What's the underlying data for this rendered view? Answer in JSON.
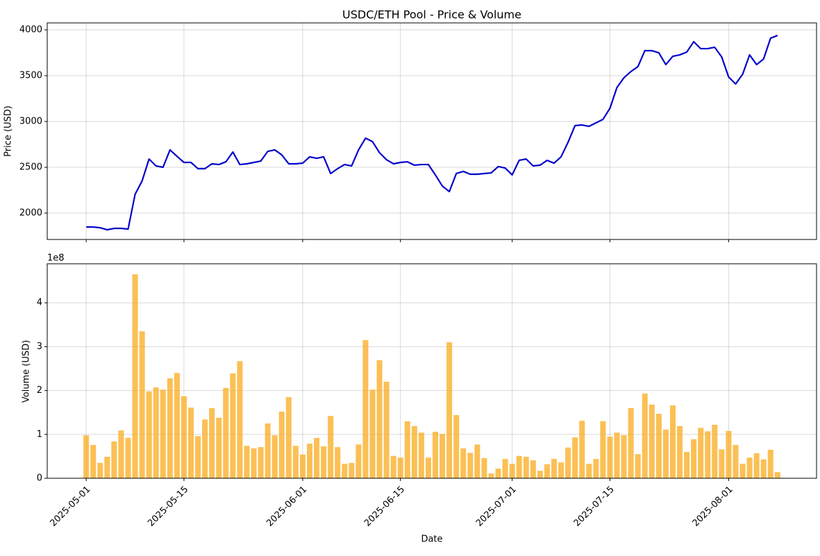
{
  "chart_data": [
    {
      "type": "line",
      "title": "USDC/ETH Pool - Price & Volume",
      "ylabel": "Price (USD)",
      "x": [
        "2025-05-01",
        "2025-05-02",
        "2025-05-03",
        "2025-05-04",
        "2025-05-05",
        "2025-05-06",
        "2025-05-07",
        "2025-05-08",
        "2025-05-09",
        "2025-05-10",
        "2025-05-11",
        "2025-05-12",
        "2025-05-13",
        "2025-05-14",
        "2025-05-15",
        "2025-05-16",
        "2025-05-17",
        "2025-05-18",
        "2025-05-19",
        "2025-05-20",
        "2025-05-21",
        "2025-05-22",
        "2025-05-23",
        "2025-05-24",
        "2025-05-25",
        "2025-05-26",
        "2025-05-27",
        "2025-05-28",
        "2025-05-29",
        "2025-05-30",
        "2025-05-31",
        "2025-06-01",
        "2025-06-02",
        "2025-06-03",
        "2025-06-04",
        "2025-06-05",
        "2025-06-06",
        "2025-06-07",
        "2025-06-08",
        "2025-06-09",
        "2025-06-10",
        "2025-06-11",
        "2025-06-12",
        "2025-06-13",
        "2025-06-14",
        "2025-06-15",
        "2025-06-16",
        "2025-06-17",
        "2025-06-18",
        "2025-06-19",
        "2025-06-20",
        "2025-06-21",
        "2025-06-22",
        "2025-06-23",
        "2025-06-24",
        "2025-06-25",
        "2025-06-26",
        "2025-06-27",
        "2025-06-28",
        "2025-06-29",
        "2025-06-30",
        "2025-07-01",
        "2025-07-02",
        "2025-07-03",
        "2025-07-04",
        "2025-07-05",
        "2025-07-06",
        "2025-07-07",
        "2025-07-08",
        "2025-07-09",
        "2025-07-10",
        "2025-07-11",
        "2025-07-12",
        "2025-07-13",
        "2025-07-14",
        "2025-07-15",
        "2025-07-16",
        "2025-07-17",
        "2025-07-18",
        "2025-07-19",
        "2025-07-20",
        "2025-07-21",
        "2025-07-22",
        "2025-07-23",
        "2025-07-24",
        "2025-07-25",
        "2025-07-26",
        "2025-07-27",
        "2025-07-28",
        "2025-07-29",
        "2025-07-30",
        "2025-07-31",
        "2025-08-01",
        "2025-08-02",
        "2025-08-03",
        "2025-08-04",
        "2025-08-05",
        "2025-08-06",
        "2025-08-07",
        "2025-08-08"
      ],
      "series": [
        {
          "name": "Price",
          "color": "#0000cc",
          "values": [
            1848,
            1848,
            1840,
            1818,
            1833,
            1833,
            1825,
            2205,
            2350,
            2590,
            2515,
            2500,
            2690,
            2620,
            2553,
            2553,
            2485,
            2485,
            2538,
            2530,
            2560,
            2667,
            2530,
            2538,
            2553,
            2568,
            2674,
            2690,
            2636,
            2538,
            2538,
            2545,
            2614,
            2598,
            2614,
            2432,
            2485,
            2530,
            2515,
            2690,
            2818,
            2780,
            2659,
            2583,
            2538,
            2553,
            2560,
            2523,
            2530,
            2530,
            2417,
            2295,
            2235,
            2432,
            2455,
            2424,
            2424,
            2432,
            2439,
            2508,
            2492,
            2417,
            2576,
            2590,
            2515,
            2523,
            2576,
            2545,
            2614,
            2773,
            2955,
            2962,
            2947,
            2985,
            3023,
            3144,
            3371,
            3477,
            3545,
            3598,
            3773,
            3773,
            3750,
            3621,
            3712,
            3727,
            3758,
            3871,
            3795,
            3795,
            3810,
            3705,
            3485,
            3409,
            3515,
            3727,
            3621,
            3682,
            3909,
            3939
          ]
        }
      ],
      "xlim": [
        "2025-04-25T10:00",
        "2025-08-13T14:00"
      ],
      "xticks": [
        "2025-05-01",
        "2025-05-15",
        "2025-06-01",
        "2025-06-15",
        "2025-07-01",
        "2025-07-15",
        "2025-08-01"
      ],
      "ylim": [
        1712,
        4076
      ],
      "yticks": [
        2000,
        2500,
        3000,
        3500,
        4000
      ],
      "grid": true
    },
    {
      "type": "bar",
      "ylabel": "Volume (USD)",
      "xlabel": "Date",
      "y_offset_label": "1e8",
      "x": [
        "2025-05-01",
        "2025-05-02",
        "2025-05-03",
        "2025-05-04",
        "2025-05-05",
        "2025-05-06",
        "2025-05-07",
        "2025-05-08",
        "2025-05-09",
        "2025-05-10",
        "2025-05-11",
        "2025-05-12",
        "2025-05-13",
        "2025-05-14",
        "2025-05-15",
        "2025-05-16",
        "2025-05-17",
        "2025-05-18",
        "2025-05-19",
        "2025-05-20",
        "2025-05-21",
        "2025-05-22",
        "2025-05-23",
        "2025-05-24",
        "2025-05-25",
        "2025-05-26",
        "2025-05-27",
        "2025-05-28",
        "2025-05-29",
        "2025-05-30",
        "2025-05-31",
        "2025-06-01",
        "2025-06-02",
        "2025-06-03",
        "2025-06-04",
        "2025-06-05",
        "2025-06-06",
        "2025-06-07",
        "2025-06-08",
        "2025-06-09",
        "2025-06-10",
        "2025-06-11",
        "2025-06-12",
        "2025-06-13",
        "2025-06-14",
        "2025-06-15",
        "2025-06-16",
        "2025-06-17",
        "2025-06-18",
        "2025-06-19",
        "2025-06-20",
        "2025-06-21",
        "2025-06-22",
        "2025-06-23",
        "2025-06-24",
        "2025-06-25",
        "2025-06-26",
        "2025-06-27",
        "2025-06-28",
        "2025-06-29",
        "2025-06-30",
        "2025-07-01",
        "2025-07-02",
        "2025-07-03",
        "2025-07-04",
        "2025-07-05",
        "2025-07-06",
        "2025-07-07",
        "2025-07-08",
        "2025-07-09",
        "2025-07-10",
        "2025-07-11",
        "2025-07-12",
        "2025-07-13",
        "2025-07-14",
        "2025-07-15",
        "2025-07-16",
        "2025-07-17",
        "2025-07-18",
        "2025-07-19",
        "2025-07-20",
        "2025-07-21",
        "2025-07-22",
        "2025-07-23",
        "2025-07-24",
        "2025-07-25",
        "2025-07-26",
        "2025-07-27",
        "2025-07-28",
        "2025-07-29",
        "2025-07-30",
        "2025-07-31",
        "2025-08-01",
        "2025-08-02",
        "2025-08-03",
        "2025-08-04",
        "2025-08-05",
        "2025-08-06",
        "2025-08-07",
        "2025-08-08"
      ],
      "series": [
        {
          "name": "Volume",
          "color": "#f9ab1c",
          "opacity": 0.75,
          "values": [
            0.98,
            0.76,
            0.35,
            0.49,
            0.84,
            1.09,
            0.92,
            4.65,
            3.35,
            1.98,
            2.07,
            2.02,
            2.28,
            2.4,
            1.87,
            1.61,
            0.96,
            1.34,
            1.6,
            1.38,
            2.06,
            2.39,
            2.67,
            0.74,
            0.68,
            0.71,
            1.25,
            0.98,
            1.52,
            1.85,
            0.74,
            0.54,
            0.79,
            0.92,
            0.73,
            1.42,
            0.71,
            0.33,
            0.35,
            0.77,
            3.15,
            2.02,
            2.69,
            2.2,
            0.51,
            0.47,
            1.3,
            1.19,
            1.04,
            0.47,
            1.06,
            1.01,
            3.1,
            1.44,
            0.68,
            0.58,
            0.77,
            0.46,
            0.11,
            0.22,
            0.44,
            0.33,
            0.51,
            0.49,
            0.41,
            0.17,
            0.32,
            0.44,
            0.36,
            0.7,
            0.93,
            1.31,
            0.33,
            0.44,
            1.3,
            0.95,
            1.04,
            0.98,
            1.6,
            0.55,
            1.93,
            1.68,
            1.47,
            1.11,
            1.66,
            1.19,
            0.6,
            0.89,
            1.15,
            1.07,
            1.22,
            0.66,
            1.08,
            0.76,
            0.33,
            0.47,
            0.57,
            0.43,
            0.65,
            0.14
          ]
        }
      ],
      "xlim": [
        "2025-04-25T10:00",
        "2025-08-13T14:00"
      ],
      "xticks": [
        "2025-05-01",
        "2025-05-15",
        "2025-06-01",
        "2025-06-15",
        "2025-07-01",
        "2025-07-15",
        "2025-08-01"
      ],
      "ylim": [
        0,
        4.89
      ],
      "yticks": [
        0,
        1,
        2,
        3,
        4
      ],
      "grid": true
    }
  ]
}
